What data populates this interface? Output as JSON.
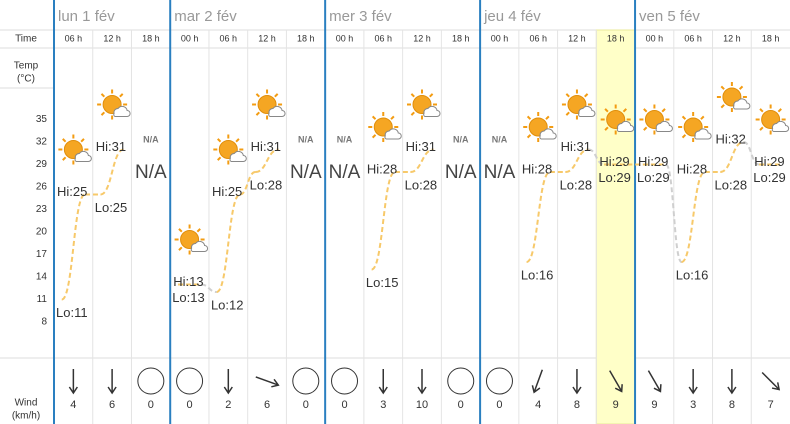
{
  "days_header": [
    "lun 1 fév",
    "mar 2 fév",
    "mer 3 fév",
    "jeu 4 fév",
    "ven 5 fév"
  ],
  "row_labels": {
    "time": "Time",
    "temp": "Temp",
    "temp_unit": "(°C)",
    "wind": "Wind",
    "wind_unit": "(km/h)"
  },
  "missing_label": "N/A",
  "current": 14,
  "times": [
    "06 h",
    "12 h",
    "18 h",
    "00 h",
    "06 h",
    "12 h",
    "18 h",
    "00 h",
    "06 h",
    "12 h",
    "18 h",
    "00 h",
    "06 h",
    "12 h",
    "18 h",
    "00 h",
    "06 h",
    "12 h",
    "18 h"
  ],
  "hi": [
    25,
    31,
    null,
    13,
    25,
    31,
    null,
    null,
    28,
    31,
    null,
    null,
    28,
    31,
    29,
    29,
    28,
    32,
    29
  ],
  "hi_labels": [
    "Hi:25",
    "Hi:31",
    null,
    "Hi:13",
    "Hi:25",
    "Hi:31",
    null,
    null,
    "Hi:28",
    "Hi:31",
    null,
    null,
    "Hi:28",
    "Hi:31",
    "Hi:29",
    "Hi:29",
    "Hi:28",
    "Hi:32",
    "Hi:29"
  ],
  "lo": [
    11,
    25,
    null,
    13,
    12,
    28,
    null,
    null,
    15,
    28,
    null,
    null,
    16,
    28,
    29,
    29,
    16,
    28,
    29
  ],
  "lo_labels": [
    "Lo:11",
    "Lo:25",
    null,
    "Lo:13",
    "Lo:12",
    "Lo:28",
    null,
    null,
    "Lo:15",
    "Lo:28",
    null,
    null,
    "Lo:16",
    "Lo:28",
    "Lo:29",
    "Lo:29",
    "Lo:16",
    "Lo:28",
    "Lo:29"
  ],
  "wind": [
    4,
    6,
    0,
    0,
    2,
    6,
    0,
    0,
    3,
    10,
    0,
    0,
    4,
    8,
    9,
    9,
    3,
    8,
    7
  ],
  "wind_dir": [
    180,
    180,
    null,
    null,
    180,
    110,
    null,
    null,
    180,
    180,
    null,
    null,
    200,
    180,
    150,
    150,
    180,
    180,
    135
  ],
  "ylim": [
    4,
    40
  ],
  "yticks": [
    8,
    11,
    14,
    17,
    20,
    23,
    26,
    29,
    32,
    35
  ]
}
